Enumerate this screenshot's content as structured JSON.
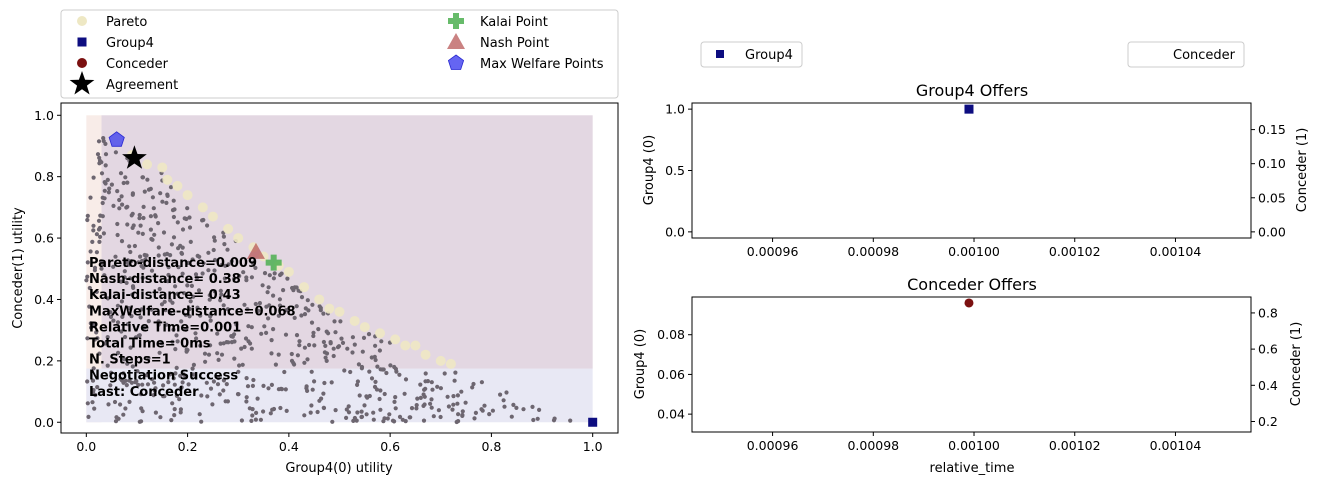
{
  "colors": {
    "pareto": "#eee8c4",
    "group4": "#0d0d80",
    "conceder": "#7b1010",
    "kalai": "#4caf50",
    "nash": "#b85858",
    "welfare": "#4a4af0",
    "agreement": "#000000",
    "cloud": "#6d6670",
    "region_purple": "#e3d7e2",
    "region_blue": "#e8e8f4",
    "region_peach": "#f8ece8"
  },
  "chart_data": [
    {
      "id": "utility-space",
      "type": "scatter",
      "xlabel": "Group4(0) utility",
      "ylabel": "Conceder(1) utility",
      "xlim": [
        -0.05,
        1.05
      ],
      "ylim": [
        -0.035,
        1.04
      ],
      "x_ticks": [
        0.0,
        0.2,
        0.4,
        0.6,
        0.8,
        1.0
      ],
      "x_tick_labels": [
        "0.0",
        "0.2",
        "0.4",
        "0.6",
        "0.8",
        "1.0"
      ],
      "y_ticks": [
        0.0,
        0.2,
        0.4,
        0.6,
        0.8,
        1.0
      ],
      "y_tick_labels": [
        "0.0",
        "0.2",
        "0.4",
        "0.6",
        "0.8",
        "1.0"
      ],
      "regions": [
        {
          "name": "conceder-reserved",
          "x": [
            0.0,
            0.03
          ],
          "y": [
            0.0,
            1.0
          ]
        },
        {
          "name": "group4-reserved",
          "x": [
            0.0,
            1.0
          ],
          "y": [
            0.0,
            0.175
          ]
        },
        {
          "name": "agreement-zone",
          "x": [
            0.03,
            1.0
          ],
          "y": [
            0.175,
            1.0
          ]
        }
      ],
      "legend": [
        {
          "label": "Pareto",
          "marker": "circle",
          "color": "#eee8c4"
        },
        {
          "label": "Group4",
          "marker": "square",
          "color": "#0d0d80"
        },
        {
          "label": "Conceder",
          "marker": "circle",
          "color": "#7b1010"
        },
        {
          "label": "Agreement",
          "marker": "star",
          "color": "#000000"
        },
        {
          "label": "Kalai Point",
          "marker": "plus",
          "color": "#4caf50"
        },
        {
          "label": "Nash Point",
          "marker": "triangle",
          "color": "#b85858"
        },
        {
          "label": "Max Welfare Points",
          "marker": "pentagon",
          "color": "#4a4af0"
        }
      ],
      "legend_placement": "above-left-plot",
      "pareto_front": {
        "x": [
          0.06,
          0.09,
          0.12,
          0.15,
          0.16,
          0.18,
          0.2,
          0.23,
          0.25,
          0.28,
          0.3,
          0.33,
          0.35,
          0.38,
          0.4,
          0.43,
          0.46,
          0.48,
          0.5,
          0.53,
          0.55,
          0.58,
          0.61,
          0.63,
          0.65,
          0.67,
          0.7,
          0.72
        ],
        "y": [
          0.92,
          0.87,
          0.84,
          0.83,
          0.79,
          0.77,
          0.74,
          0.7,
          0.67,
          0.63,
          0.6,
          0.57,
          0.54,
          0.51,
          0.49,
          0.44,
          0.4,
          0.37,
          0.36,
          0.33,
          0.31,
          0.29,
          0.27,
          0.25,
          0.25,
          0.22,
          0.2,
          0.19
        ]
      },
      "group4_offers": {
        "x": [
          1.0
        ],
        "y": [
          0.0
        ]
      },
      "conceder_offers": {
        "x": [],
        "y": []
      },
      "agreement": {
        "x": 0.095,
        "y": 0.86
      },
      "kalai_point": {
        "x": 0.37,
        "y": 0.52
      },
      "nash_point": {
        "x": 0.335,
        "y": 0.555
      },
      "max_welfare_points": [
        {
          "x": 0.06,
          "y": 0.92
        }
      ],
      "annotations": [
        "Pareto-distance=0.009",
        "Nash-distance= 0.38",
        "Kalai-distance= 0.43",
        "MaxWelfare-distance=0.068",
        "Relative Time=0.001",
        "Total Time= 0ms",
        "N. Steps=1",
        "Negotiation Success",
        "Last: Conceder"
      ]
    },
    {
      "id": "group4-offers",
      "type": "scatter",
      "title": "Group4 Offers",
      "xlabel": "",
      "ylabel": "Group4 (0)",
      "ylabel_right": "Conceder (1)",
      "xlim": [
        0.000944,
        0.001055
      ],
      "ylim": [
        -0.05,
        1.05
      ],
      "ylim_right": [
        -0.009,
        0.189
      ],
      "x_ticks": [
        0.00096,
        0.00098,
        0.001,
        0.00102,
        0.00104
      ],
      "x_tick_labels": [
        "0.00096",
        "0.00098",
        "0.00100",
        "0.00102",
        "0.00104"
      ],
      "y_ticks": [
        0.0,
        0.5,
        1.0
      ],
      "y_tick_labels": [
        "0.0",
        "0.5",
        "1.0"
      ],
      "y_ticks_right": [
        0.0,
        0.05,
        0.1,
        0.15
      ],
      "y_tick_labels_right": [
        "0.00",
        "0.05",
        "0.10",
        "0.15"
      ],
      "legend": [
        {
          "label": "Group4",
          "marker": "square",
          "color": "#0d0d80"
        }
      ],
      "legend_placement": "upper-left",
      "series": [
        {
          "name": "Group4",
          "x": [
            0.000999
          ],
          "y": [
            1.0
          ]
        }
      ]
    },
    {
      "id": "conceder-offers",
      "type": "scatter",
      "title": "Conceder Offers",
      "xlabel": "relative_time",
      "ylabel": "Group4 (0)",
      "ylabel_right": "Conceder (1)",
      "xlim": [
        0.000944,
        0.001055
      ],
      "ylim": [
        0.031,
        0.099
      ],
      "ylim_right": [
        0.142,
        0.888
      ],
      "x_ticks": [
        0.00096,
        0.00098,
        0.001,
        0.00102,
        0.00104
      ],
      "x_tick_labels": [
        "0.00096",
        "0.00098",
        "0.00100",
        "0.00102",
        "0.00104"
      ],
      "y_ticks": [
        0.04,
        0.06,
        0.08
      ],
      "y_tick_labels": [
        "0.04",
        "0.06",
        "0.08"
      ],
      "y_ticks_right": [
        0.2,
        0.4,
        0.6,
        0.8
      ],
      "y_tick_labels_right": [
        "0.2",
        "0.4",
        "0.6",
        "0.8"
      ],
      "legend": [
        {
          "label": "Conceder",
          "marker": "none",
          "color": "#7b1010"
        }
      ],
      "legend_placement": "upper-right",
      "series": [
        {
          "name": "Conceder",
          "x": [
            0.000999
          ],
          "y": [
            0.096
          ]
        }
      ]
    }
  ]
}
